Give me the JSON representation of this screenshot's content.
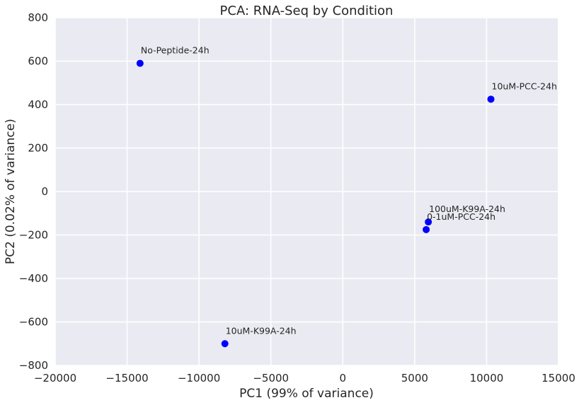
{
  "chart_data": {
    "type": "scatter",
    "title": "PCA: RNA-Seq by Condition",
    "xlabel": "PC1 (99% of variance)",
    "ylabel": "PC2 (0.02% of variance)",
    "xlim": [
      -20000,
      15000
    ],
    "ylim": [
      -800,
      800
    ],
    "xticks": [
      -20000,
      -15000,
      -10000,
      -5000,
      0,
      5000,
      10000,
      15000
    ],
    "yticks": [
      -800,
      -600,
      -400,
      -200,
      0,
      200,
      400,
      600,
      800
    ],
    "xtick_labels": [
      "−20000",
      "−15000",
      "−10000",
      "−5000",
      "0",
      "5000",
      "10000",
      "15000"
    ],
    "ytick_labels": [
      "−800",
      "−600",
      "−400",
      "−200",
      "0",
      "200",
      "400",
      "600",
      "800"
    ],
    "grid": true,
    "point_color": "#0000ff",
    "background_color": "#eaeaf2",
    "grid_color": "#ffffff",
    "points": [
      {
        "label": "No-Peptide-24h",
        "x": -14100,
        "y": 590
      },
      {
        "label": "10uM-PCC-24h",
        "x": 10300,
        "y": 425
      },
      {
        "label": "100uM-K99A-24h",
        "x": 5950,
        "y": -140
      },
      {
        "label": "0-1uM-PCC-24h",
        "x": 5800,
        "y": -175
      },
      {
        "label": "10uM-K99A-24h",
        "x": -8200,
        "y": -700
      }
    ]
  }
}
